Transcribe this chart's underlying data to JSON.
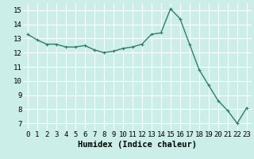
{
  "x": [
    0,
    1,
    2,
    3,
    4,
    5,
    6,
    7,
    8,
    9,
    10,
    11,
    12,
    13,
    14,
    15,
    16,
    17,
    18,
    19,
    20,
    21,
    22,
    23
  ],
  "y": [
    13.3,
    12.9,
    12.6,
    12.6,
    12.4,
    12.4,
    12.5,
    12.2,
    12.0,
    12.1,
    12.3,
    12.4,
    12.6,
    13.3,
    13.4,
    15.1,
    14.4,
    12.6,
    10.8,
    9.7,
    8.6,
    7.9,
    7.0,
    8.1
  ],
  "line_color": "#2e7d6e",
  "marker": "+",
  "marker_size": 3,
  "bg_color": "#cceee8",
  "grid_color": "#ffffff",
  "xlabel": "Humidex (Indice chaleur)",
  "xlim": [
    -0.5,
    23.5
  ],
  "ylim": [
    6.5,
    15.5
  ],
  "yticks": [
    7,
    8,
    9,
    10,
    11,
    12,
    13,
    14,
    15
  ],
  "xticks": [
    0,
    1,
    2,
    3,
    4,
    5,
    6,
    7,
    8,
    9,
    10,
    11,
    12,
    13,
    14,
    15,
    16,
    17,
    18,
    19,
    20,
    21,
    22,
    23
  ],
  "tick_fontsize": 6.5,
  "xlabel_fontsize": 7.5,
  "line_width": 1.0
}
